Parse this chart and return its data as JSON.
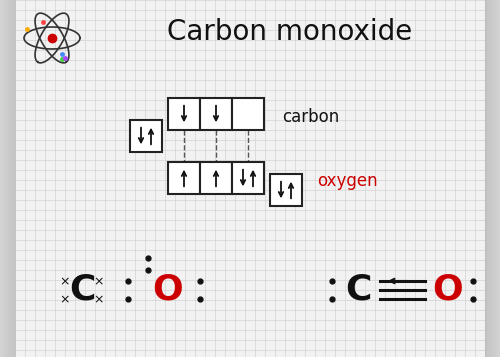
{
  "title": "Carbon monoxide",
  "title_fontsize": 20,
  "background_color": "#d8d8d8",
  "paper_color": "#f2f2f2",
  "grid_color": "#cccccc",
  "label_carbon": "carbon",
  "label_oxygen": "oxygen",
  "label_oxygen_color": "#cc0000",
  "label_carbon_color": "#111111",
  "box_color": "#222222",
  "dashed_color": "#555555",
  "atom_orbit_color": "#333333",
  "atom_nucleus_color": "#cc0000"
}
